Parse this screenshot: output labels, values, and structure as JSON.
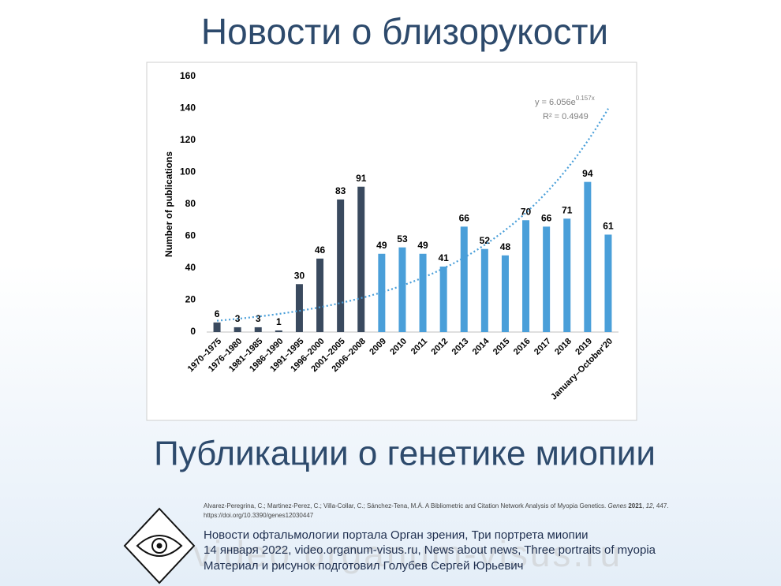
{
  "header": {
    "title": "Новости о близорукости"
  },
  "chart_data": {
    "type": "bar",
    "y_axis_label": "Number of publications",
    "categories": [
      "1970–1975",
      "1976–1980",
      "1981–1985",
      "1986–1990",
      "1991–1995",
      "1996–2000",
      "2001–2005",
      "2006–2008",
      "2009",
      "2010",
      "2011",
      "2012",
      "2013",
      "2014",
      "2015",
      "2016",
      "2017",
      "2018",
      "2019",
      "January–October'20"
    ],
    "values": [
      6,
      3,
      3,
      1,
      30,
      46,
      83,
      91,
      49,
      53,
      49,
      41,
      66,
      52,
      48,
      70,
      66,
      71,
      94,
      61
    ],
    "colors": [
      "#3a4a5f",
      "#3a4a5f",
      "#3a4a5f",
      "#3a4a5f",
      "#3a4a5f",
      "#3a4a5f",
      "#3a4a5f",
      "#3a4a5f",
      "#4a9fd9",
      "#4a9fd9",
      "#4a9fd9",
      "#4a9fd9",
      "#4a9fd9",
      "#4a9fd9",
      "#4a9fd9",
      "#4a9fd9",
      "#4a9fd9",
      "#4a9fd9",
      "#4a9fd9",
      "#4a9fd9"
    ],
    "ylim": [
      0,
      160
    ],
    "yticks": [
      0,
      20,
      40,
      60,
      80,
      100,
      120,
      140,
      160
    ],
    "trendline": {
      "a": 6.056,
      "b": 0.157,
      "color": "#4a9fd9",
      "equation": "y = 6.056e",
      "exponent": "0.157x",
      "r_squared": "R² = 0.4949"
    }
  },
  "subtitle": "Публикации о генетике миопии",
  "citation": {
    "parts": [
      "Alvarez-Peregrina, C.; Martinez-Perez, C.; Villa-Collar, C.; Sánchez-Tena, M.Á. A Bibliometric and Citation Network Analysis of Myopia Genetics. ",
      "Genes",
      " ",
      "2021",
      ", ",
      "12",
      ", 447."
    ],
    "doi": "https://doi.org/10.3390/genes12030447"
  },
  "footer": {
    "lines": [
      "Новости офтальмологии портала Орган зрения, Три портрета миопии",
      "14 января 2022, video.organum-visus.ru, News about news, Three portraits of myopia",
      "Материал и рисунок подготовил Голубев Сергей Юрьевич"
    ],
    "watermark": "video.organum-visus.ru"
  }
}
